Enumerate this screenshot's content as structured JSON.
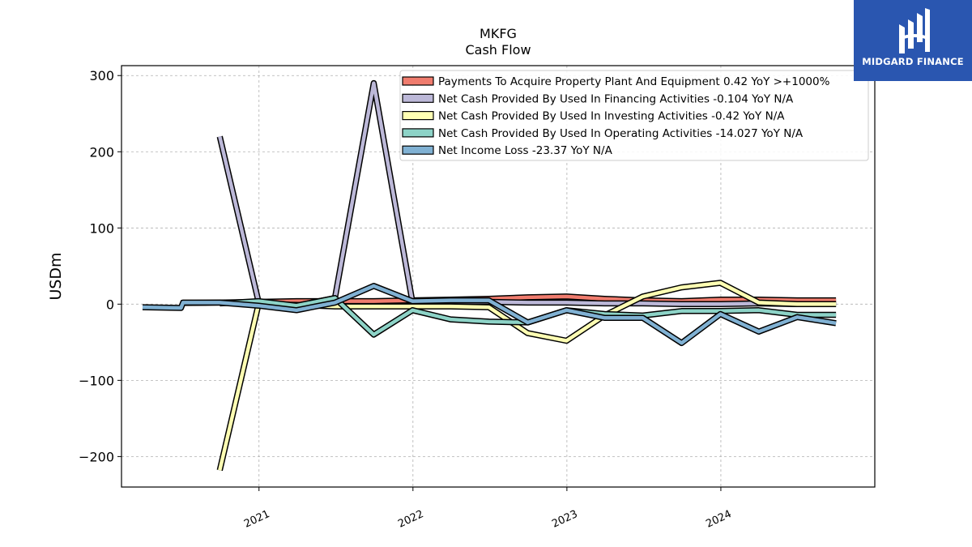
{
  "chart_data": {
    "type": "line",
    "title": "MKFG",
    "subtitle": "Cash Flow",
    "xlabel": "",
    "ylabel": "USDm",
    "ylim": [
      -240,
      313
    ],
    "yticks": [
      300,
      200,
      100,
      0,
      -100,
      -200
    ],
    "ytick_labels": [
      "300",
      "200",
      "100",
      "0",
      "−100",
      "−200"
    ],
    "xlim": [
      "2020-02-10",
      "2024-12-31"
    ],
    "xticks": [
      "2021-01-01",
      "2022-01-01",
      "2023-01-01",
      "2024-01-01"
    ],
    "xtick_labels": [
      "2021",
      "2022",
      "2023",
      "2024"
    ],
    "grid": true,
    "legend_position": "top-right",
    "series": [
      {
        "name": "Payments To Acquire Property Plant And Equipment  0.42 YoY >+1000%",
        "color": "#f07c6e",
        "x": [
          "2020-06-30",
          "2020-09-30",
          "2020-12-31",
          "2021-03-31",
          "2021-06-30",
          "2021-09-30",
          "2021-12-31",
          "2022-03-31",
          "2022-06-30",
          "2022-09-30",
          "2022-12-31",
          "2023-03-31",
          "2023-06-30",
          "2023-09-30",
          "2023-12-31",
          "2024-03-31",
          "2024-06-30",
          "2024-09-30"
        ],
        "values": [
          1.5,
          2,
          3,
          4,
          4,
          4,
          5,
          6,
          7,
          9,
          10,
          7,
          5,
          4,
          6,
          6,
          5,
          5
        ]
      },
      {
        "name": "Net Cash Provided By Used In Financing Activities  -0.104 YoY N/A",
        "color": "#bcb8d8",
        "x": [
          "2020-09-30",
          "2020-12-31",
          "2021-03-31",
          "2021-06-30",
          "2021-09-30",
          "2021-12-31",
          "2022-03-31",
          "2022-06-30",
          "2022-09-30",
          "2022-12-31",
          "2023-03-31",
          "2023-06-30",
          "2023-09-30",
          "2023-12-31",
          "2024-03-31",
          "2024-06-30",
          "2024-09-30"
        ],
        "values": [
          220,
          3,
          -2,
          8,
          290,
          2,
          3,
          3,
          2,
          2,
          1,
          1,
          0,
          0,
          1,
          0,
          0
        ]
      },
      {
        "name": "Net Cash Provided By Used In Investing Activities  -0.42 YoY N/A",
        "color": "#ffffb3",
        "x": [
          "2020-09-30",
          "2020-12-31",
          "2021-03-31",
          "2021-06-30",
          "2021-09-30",
          "2021-12-31",
          "2022-03-31",
          "2022-06-30",
          "2022-09-30",
          "2022-12-31",
          "2023-03-31",
          "2023-06-30",
          "2023-09-30",
          "2023-12-31",
          "2024-03-31",
          "2024-06-30",
          "2024-09-30"
        ],
        "values": [
          -218,
          0,
          -1,
          -3,
          -3,
          -3,
          -3,
          -4,
          -38,
          -48,
          -15,
          10,
          22,
          28,
          2,
          0,
          0
        ]
      },
      {
        "name": "Net Cash Provided By Used In Operating Activities  -14.027 YoY N/A",
        "color": "#8dd3c7",
        "x": [
          "2020-09-30",
          "2020-12-31",
          "2021-03-31",
          "2021-06-30",
          "2021-09-30",
          "2021-12-31",
          "2022-03-31",
          "2022-06-30",
          "2022-09-30",
          "2022-12-31",
          "2023-03-31",
          "2023-06-30",
          "2023-09-30",
          "2023-12-31",
          "2024-03-31",
          "2024-06-30",
          "2024-09-30"
        ],
        "values": [
          1,
          4,
          -2,
          8,
          -40,
          -8,
          -20,
          -23,
          -24,
          -8,
          -13,
          -15,
          -9,
          -9,
          -8,
          -14,
          -14
        ]
      },
      {
        "name": "Net Income Loss  -23.37 YoY N/A",
        "color": "#80b1d3",
        "x": [
          "2020-03-31",
          "2020-06-30",
          "2020-07-05",
          "2020-09-30",
          "2020-12-31",
          "2021-03-31",
          "2021-06-30",
          "2021-09-30",
          "2021-12-31",
          "2022-03-31",
          "2022-06-30",
          "2022-09-30",
          "2022-12-31",
          "2023-03-31",
          "2023-06-30",
          "2023-09-30",
          "2023-12-31",
          "2024-03-31",
          "2024-06-30",
          "2024-09-30"
        ],
        "values": [
          -4,
          -5,
          2,
          2,
          -2,
          -8,
          2,
          24,
          4,
          5,
          5,
          -24,
          -8,
          -18,
          -18,
          -51,
          -13,
          -36,
          -17,
          -25
        ]
      }
    ]
  },
  "logo": {
    "text": "MIDGARD FINANCE",
    "background": "#2a56b0"
  }
}
